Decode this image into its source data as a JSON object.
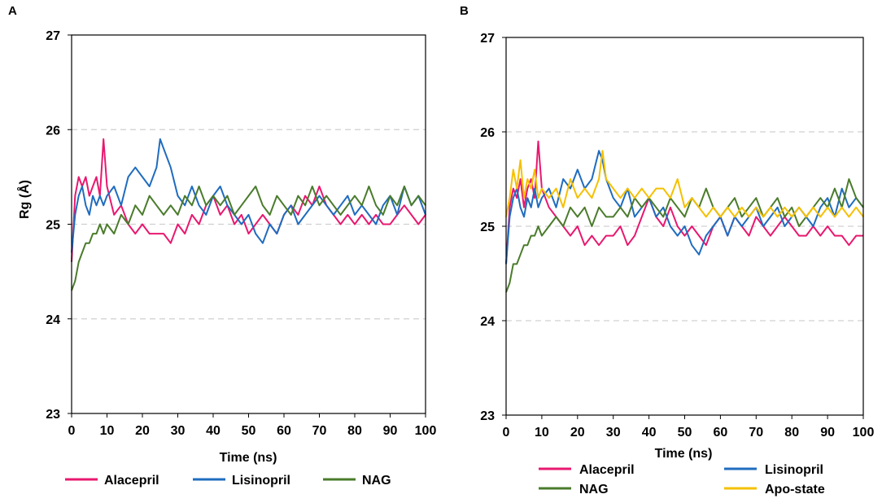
{
  "chart_data": [
    {
      "panel_label": "A",
      "type": "line",
      "title": "",
      "xlabel": "Time (ns)",
      "ylabel": "Rg (Å)",
      "xlim": [
        0,
        100
      ],
      "ylim": [
        23,
        27
      ],
      "x_ticks": [
        "0",
        "10",
        "20",
        "30",
        "40",
        "50",
        "60",
        "70",
        "80",
        "90",
        "100"
      ],
      "y_ticks": [
        "23",
        "24",
        "25",
        "26",
        "27"
      ],
      "grid": "horizontal dashed",
      "legend_position": "bottom",
      "series": [
        {
          "name": "Alacepril",
          "color": "#e8186f",
          "x": [
            0,
            1,
            2,
            3,
            4,
            5,
            6,
            7,
            8,
            9,
            10,
            12,
            14,
            16,
            18,
            20,
            22,
            24,
            26,
            28,
            30,
            32,
            34,
            36,
            38,
            40,
            42,
            44,
            46,
            48,
            50,
            52,
            54,
            56,
            58,
            60,
            62,
            64,
            66,
            68,
            70,
            72,
            74,
            76,
            78,
            80,
            82,
            84,
            86,
            88,
            90,
            92,
            94,
            96,
            98,
            100
          ],
          "values": [
            24.6,
            25.3,
            25.5,
            25.4,
            25.5,
            25.3,
            25.4,
            25.5,
            25.3,
            25.9,
            25.4,
            25.1,
            25.2,
            25.0,
            24.9,
            25.0,
            24.9,
            24.9,
            24.9,
            24.8,
            25.0,
            24.9,
            25.1,
            25.0,
            25.2,
            25.3,
            25.1,
            25.2,
            25.0,
            25.1,
            24.9,
            25.0,
            25.1,
            25.0,
            24.9,
            25.1,
            25.2,
            25.1,
            25.3,
            25.2,
            25.4,
            25.2,
            25.1,
            25.0,
            25.1,
            25.0,
            25.1,
            25.0,
            25.1,
            25.0,
            25.0,
            25.1,
            25.2,
            25.1,
            25.0,
            25.1
          ]
        },
        {
          "name": "Lisinopril",
          "color": "#1f6cbf",
          "x": [
            0,
            1,
            2,
            3,
            4,
            5,
            6,
            7,
            8,
            9,
            10,
            12,
            14,
            16,
            18,
            20,
            22,
            24,
            25,
            26,
            28,
            30,
            32,
            34,
            36,
            38,
            40,
            42,
            44,
            46,
            48,
            50,
            52,
            54,
            56,
            58,
            60,
            62,
            64,
            66,
            68,
            70,
            72,
            74,
            76,
            78,
            80,
            82,
            84,
            86,
            88,
            90,
            92,
            94,
            96,
            98,
            100
          ],
          "values": [
            24.7,
            25.1,
            25.3,
            25.4,
            25.2,
            25.1,
            25.3,
            25.2,
            25.3,
            25.2,
            25.3,
            25.4,
            25.2,
            25.5,
            25.6,
            25.5,
            25.4,
            25.6,
            25.9,
            25.8,
            25.6,
            25.3,
            25.2,
            25.4,
            25.2,
            25.1,
            25.3,
            25.4,
            25.2,
            25.1,
            25.0,
            25.1,
            24.9,
            24.8,
            25.0,
            24.9,
            25.1,
            25.2,
            25.0,
            25.1,
            25.2,
            25.3,
            25.2,
            25.1,
            25.2,
            25.3,
            25.1,
            25.2,
            25.1,
            25.0,
            25.2,
            25.3,
            25.1,
            25.4,
            25.2,
            25.3,
            25.1
          ]
        },
        {
          "name": "NAG",
          "color": "#4a7b2b",
          "x": [
            0,
            1,
            2,
            3,
            4,
            5,
            6,
            7,
            8,
            9,
            10,
            12,
            14,
            16,
            18,
            20,
            22,
            24,
            26,
            28,
            30,
            32,
            34,
            36,
            38,
            40,
            42,
            44,
            46,
            48,
            50,
            52,
            54,
            56,
            58,
            60,
            62,
            64,
            66,
            68,
            70,
            72,
            74,
            76,
            78,
            80,
            82,
            84,
            86,
            88,
            90,
            92,
            94,
            96,
            98,
            100
          ],
          "values": [
            24.3,
            24.4,
            24.6,
            24.7,
            24.8,
            24.8,
            24.9,
            24.9,
            25.0,
            24.9,
            25.0,
            24.9,
            25.1,
            25.0,
            25.2,
            25.1,
            25.3,
            25.2,
            25.1,
            25.2,
            25.1,
            25.3,
            25.2,
            25.4,
            25.2,
            25.3,
            25.2,
            25.3,
            25.1,
            25.2,
            25.3,
            25.4,
            25.2,
            25.1,
            25.3,
            25.2,
            25.1,
            25.3,
            25.2,
            25.4,
            25.2,
            25.3,
            25.2,
            25.1,
            25.2,
            25.3,
            25.2,
            25.4,
            25.2,
            25.1,
            25.3,
            25.2,
            25.4,
            25.2,
            25.3,
            25.2
          ]
        }
      ]
    },
    {
      "panel_label": "B",
      "type": "line",
      "title": "",
      "xlabel": "Time (ns)",
      "ylabel": "",
      "xlim": [
        0,
        100
      ],
      "ylim": [
        23,
        27
      ],
      "x_ticks": [
        "0",
        "10",
        "20",
        "30",
        "40",
        "50",
        "60",
        "70",
        "80",
        "90",
        "100"
      ],
      "y_ticks": [
        "23",
        "24",
        "25",
        "26",
        "27"
      ],
      "grid": "horizontal dashed",
      "legend_position": "bottom",
      "series": [
        {
          "name": "Alacepril",
          "color": "#e8186f",
          "x": [
            0,
            1,
            2,
            3,
            4,
            5,
            6,
            7,
            8,
            9,
            10,
            12,
            14,
            16,
            18,
            20,
            22,
            24,
            26,
            28,
            30,
            32,
            34,
            36,
            38,
            40,
            42,
            44,
            46,
            48,
            50,
            52,
            54,
            56,
            58,
            60,
            62,
            64,
            66,
            68,
            70,
            72,
            74,
            76,
            78,
            80,
            82,
            84,
            86,
            88,
            90,
            92,
            94,
            96,
            98,
            100
          ],
          "values": [
            24.6,
            25.2,
            25.4,
            25.3,
            25.5,
            25.2,
            25.4,
            25.5,
            25.3,
            25.9,
            25.4,
            25.2,
            25.1,
            25.0,
            24.9,
            25.0,
            24.8,
            24.9,
            24.8,
            24.9,
            24.9,
            25.0,
            24.8,
            24.9,
            25.1,
            25.3,
            25.1,
            25.0,
            25.2,
            25.0,
            24.9,
            25.0,
            24.9,
            24.8,
            25.0,
            25.1,
            24.9,
            25.1,
            25.0,
            24.9,
            25.1,
            25.0,
            24.9,
            25.0,
            25.1,
            25.0,
            24.9,
            24.9,
            25.0,
            24.9,
            25.0,
            24.9,
            24.9,
            24.8,
            24.9,
            24.9
          ]
        },
        {
          "name": "Lisinopril",
          "color": "#1f6cbf",
          "x": [
            0,
            1,
            2,
            3,
            4,
            5,
            6,
            7,
            8,
            9,
            10,
            12,
            14,
            16,
            18,
            20,
            22,
            24,
            26,
            27,
            28,
            30,
            32,
            34,
            36,
            38,
            40,
            42,
            44,
            46,
            48,
            50,
            52,
            54,
            56,
            58,
            60,
            62,
            64,
            66,
            68,
            70,
            72,
            74,
            76,
            78,
            80,
            82,
            84,
            86,
            88,
            90,
            92,
            94,
            96,
            98,
            100
          ],
          "values": [
            24.6,
            25.1,
            25.3,
            25.4,
            25.2,
            25.1,
            25.3,
            25.2,
            25.4,
            25.2,
            25.3,
            25.4,
            25.2,
            25.5,
            25.4,
            25.6,
            25.4,
            25.5,
            25.8,
            25.7,
            25.5,
            25.3,
            25.2,
            25.4,
            25.1,
            25.2,
            25.3,
            25.1,
            25.2,
            25.0,
            24.9,
            25.0,
            24.8,
            24.7,
            24.9,
            25.0,
            25.1,
            24.9,
            25.1,
            25.0,
            25.1,
            25.2,
            25.0,
            25.1,
            25.2,
            25.0,
            25.1,
            25.2,
            25.1,
            25.0,
            25.2,
            25.3,
            25.1,
            25.4,
            25.2,
            25.3,
            25.2
          ]
        },
        {
          "name": "NAG",
          "color": "#4a7b2b",
          "x": [
            0,
            1,
            2,
            3,
            4,
            5,
            6,
            7,
            8,
            9,
            10,
            12,
            14,
            16,
            18,
            20,
            22,
            24,
            26,
            28,
            30,
            32,
            34,
            36,
            38,
            40,
            42,
            44,
            46,
            48,
            50,
            52,
            54,
            56,
            58,
            60,
            62,
            64,
            66,
            68,
            70,
            72,
            74,
            76,
            78,
            80,
            82,
            84,
            86,
            88,
            90,
            92,
            94,
            96,
            98,
            100
          ],
          "values": [
            24.3,
            24.4,
            24.6,
            24.6,
            24.7,
            24.8,
            24.8,
            24.9,
            24.9,
            25.0,
            24.9,
            25.0,
            25.1,
            25.0,
            25.2,
            25.1,
            25.2,
            25.0,
            25.2,
            25.1,
            25.1,
            25.2,
            25.1,
            25.3,
            25.2,
            25.3,
            25.2,
            25.1,
            25.3,
            25.2,
            25.1,
            25.3,
            25.2,
            25.4,
            25.2,
            25.1,
            25.2,
            25.3,
            25.1,
            25.2,
            25.3,
            25.1,
            25.2,
            25.3,
            25.1,
            25.2,
            25.0,
            25.1,
            25.2,
            25.3,
            25.2,
            25.4,
            25.2,
            25.5,
            25.3,
            25.2
          ]
        },
        {
          "name": "Apo-state",
          "color": "#f5c000",
          "x": [
            0,
            1,
            2,
            3,
            4,
            5,
            6,
            7,
            8,
            9,
            10,
            12,
            14,
            16,
            18,
            20,
            22,
            24,
            26,
            27,
            28,
            30,
            32,
            34,
            36,
            38,
            40,
            42,
            44,
            46,
            48,
            50,
            52,
            54,
            56,
            58,
            60,
            62,
            64,
            66,
            68,
            70,
            72,
            74,
            76,
            78,
            80,
            82,
            84,
            86,
            88,
            90,
            92,
            94,
            96,
            98,
            100
          ],
          "values": [
            25.1,
            25.3,
            25.6,
            25.4,
            25.7,
            25.3,
            25.5,
            25.4,
            25.6,
            25.3,
            25.4,
            25.3,
            25.4,
            25.2,
            25.5,
            25.3,
            25.4,
            25.3,
            25.5,
            25.8,
            25.5,
            25.4,
            25.3,
            25.4,
            25.3,
            25.4,
            25.3,
            25.4,
            25.4,
            25.3,
            25.5,
            25.2,
            25.3,
            25.2,
            25.1,
            25.2,
            25.1,
            25.2,
            25.1,
            25.2,
            25.1,
            25.2,
            25.1,
            25.2,
            25.1,
            25.2,
            25.1,
            25.2,
            25.1,
            25.2,
            25.1,
            25.2,
            25.1,
            25.2,
            25.1,
            25.2,
            25.1
          ]
        }
      ]
    }
  ]
}
